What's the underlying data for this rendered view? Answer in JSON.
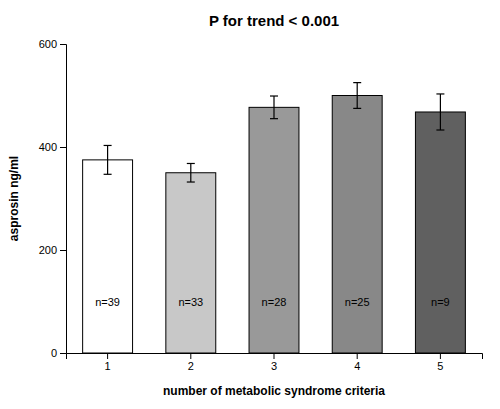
{
  "chart_data": {
    "type": "bar",
    "title": "P for trend < 0.001",
    "xlabel": "number of metabolic syndrome criteria",
    "ylabel": "asprosin ng/ml",
    "categories": [
      1,
      2,
      3,
      4,
      5
    ],
    "values": [
      375,
      350,
      477,
      500,
      468
    ],
    "errors": [
      28,
      18,
      22,
      25,
      35
    ],
    "annotations": [
      "n=39",
      "n=33",
      "n=28",
      "n=25",
      "n=9"
    ],
    "colors": [
      "#ffffff",
      "#c8c8c8",
      "#999999",
      "#888888",
      "#606060"
    ],
    "ylim": [
      0,
      600
    ],
    "yticks": [
      0,
      200,
      400,
      600
    ],
    "grid": false
  }
}
